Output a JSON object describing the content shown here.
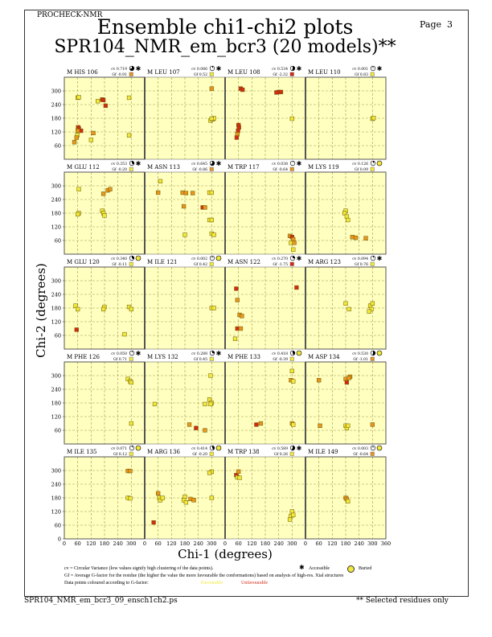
{
  "header": {
    "program": "PROCHECK-NMR",
    "page_label": "Page  3",
    "title_line1": "Ensemble chi1-chi2 plots",
    "title_line2": "SPR104_NMR_em_bcr3 (20 models)**"
  },
  "footer": {
    "filename": "SPR104_NMR_em_bcr3_09_ensch1ch2.ps",
    "note": "** Selected residues only"
  },
  "legend": {
    "cv_text": "cv = Circular Variance (low values signify high clustering of the data points).",
    "accessible": "Accessible",
    "buried": "Buried",
    "gf_text": "Gf = Average G-factor for the residue (the higher the value the more favourable the conformations) based on analysis of high-res. Xtal structures",
    "colour_text": "Data points coloured according to G-factor:",
    "favourable": "Favourable",
    "unfavourable": "Unfavourable"
  },
  "colors": {
    "favourable": "#f2e83a",
    "medium": "#e8961e",
    "unfavourable": "#d42a14",
    "plot_bg": "#ffffc0",
    "grid": "#a09a50"
  },
  "chart_data": {
    "type": "scatter",
    "xlabel": "Chi-1 (degrees)",
    "ylabel": "Chi-2 (degrees)",
    "xlim": [
      0,
      360
    ],
    "ylim": [
      0,
      360
    ],
    "xticks": [
      0,
      60,
      120,
      180,
      240,
      300,
      360
    ],
    "yticks": [
      0,
      60,
      120,
      180,
      240,
      300
    ],
    "grid": true,
    "panels": [
      {
        "name": "M HIS 106",
        "cv_label": "cv 0.719",
        "cv": 0.719,
        "gf_label": "Gf -0.91",
        "gf": -0.91,
        "access": "accessible",
        "points": [
          [
            60,
            270,
            "y"
          ],
          [
            65,
            272,
            "y"
          ],
          [
            150,
            255,
            "y"
          ],
          [
            170,
            262,
            "r"
          ],
          [
            175,
            260,
            "r"
          ],
          [
            185,
            235,
            "r"
          ],
          [
            290,
            270,
            "y"
          ],
          [
            62,
            140,
            "r"
          ],
          [
            65,
            135,
            "r"
          ],
          [
            75,
            125,
            "r"
          ],
          [
            60,
            125,
            "o"
          ],
          [
            58,
            105,
            "y"
          ],
          [
            55,
            95,
            "o"
          ],
          [
            45,
            75,
            "o"
          ],
          [
            120,
            85,
            "y"
          ],
          [
            130,
            115,
            "o"
          ],
          [
            290,
            105,
            "y"
          ]
        ]
      },
      {
        "name": "M LEU 107",
        "cv_label": "cv 0.086",
        "cv": 0.086,
        "gf_label": "Gf 0.52",
        "gf": 0.52,
        "access": "accessible",
        "points": [
          [
            300,
            310,
            "o"
          ],
          [
            295,
            170,
            "y"
          ],
          [
            305,
            175,
            "y"
          ],
          [
            310,
            180,
            "y"
          ],
          [
            300,
            178,
            "y"
          ]
        ]
      },
      {
        "name": "M LEU 108",
        "cv_label": "cv 0.534",
        "cv": 0.534,
        "gf_label": "Gf -2.32",
        "gf": -2.32,
        "access": "accessible",
        "points": [
          [
            70,
            310,
            "r"
          ],
          [
            78,
            305,
            "r"
          ],
          [
            240,
            295,
            "r"
          ],
          [
            250,
            295,
            "r"
          ],
          [
            230,
            293,
            "r"
          ],
          [
            300,
            178,
            "y"
          ],
          [
            60,
            150,
            "r"
          ],
          [
            62,
            140,
            "r"
          ],
          [
            58,
            125,
            "r"
          ],
          [
            55,
            110,
            "o"
          ],
          [
            52,
            95,
            "r"
          ]
        ]
      },
      {
        "name": "M LEU 110",
        "cv_label": "cv 0.001",
        "cv": 0.001,
        "gf_label": "Gf 0.83",
        "gf": 0.83,
        "access": "accessible",
        "points": [
          [
            300,
            178,
            "y"
          ],
          [
            305,
            181,
            "y"
          ]
        ]
      },
      {
        "name": "M GLU 112",
        "cv_label": "cv 0.353",
        "cv": 0.353,
        "gf_label": "Gf -0.20",
        "gf": -0.2,
        "access": "accessible",
        "points": [
          [
            65,
            285,
            "y"
          ],
          [
            175,
            265,
            "o"
          ],
          [
            195,
            280,
            "o"
          ],
          [
            205,
            285,
            "o"
          ],
          [
            65,
            180,
            "y"
          ],
          [
            60,
            175,
            "y"
          ],
          [
            170,
            190,
            "y"
          ],
          [
            175,
            180,
            "y"
          ],
          [
            180,
            170,
            "y"
          ]
        ]
      },
      {
        "name": "M ASN 113",
        "cv_label": "cv 0.645",
        "cv": 0.645,
        "gf_label": "Gf -0.86",
        "gf": -0.86,
        "access": "accessible",
        "points": [
          [
            70,
            320,
            "y"
          ],
          [
            60,
            270,
            "o"
          ],
          [
            170,
            270,
            "o"
          ],
          [
            185,
            268,
            "o"
          ],
          [
            215,
            268,
            "o"
          ],
          [
            290,
            270,
            "y"
          ],
          [
            300,
            270,
            "y"
          ],
          [
            175,
            210,
            "o"
          ],
          [
            260,
            205,
            "r"
          ],
          [
            270,
            205,
            "o"
          ],
          [
            290,
            150,
            "y"
          ],
          [
            300,
            150,
            "y"
          ],
          [
            180,
            85,
            "y"
          ],
          [
            300,
            90,
            "y"
          ],
          [
            310,
            85,
            "y"
          ]
        ]
      },
      {
        "name": "M TRP 117",
        "cv_label": "cv 0.038",
        "cv": 0.038,
        "gf_label": "Gf -0.64",
        "gf": -0.64,
        "access": "accessible",
        "points": [
          [
            290,
            80,
            "o"
          ],
          [
            300,
            75,
            "r"
          ],
          [
            305,
            65,
            "o"
          ],
          [
            295,
            50,
            "y"
          ],
          [
            310,
            50,
            "o"
          ],
          [
            305,
            20,
            "y"
          ]
        ]
      },
      {
        "name": "M LYS 119",
        "cv_label": "cv 0.126",
        "cv": 0.126,
        "gf_label": "Gf 0.09",
        "gf": 0.09,
        "access": "buried",
        "points": [
          [
            180,
            190,
            "y"
          ],
          [
            175,
            180,
            "y"
          ],
          [
            185,
            165,
            "y"
          ],
          [
            190,
            150,
            "y"
          ],
          [
            210,
            75,
            "o"
          ],
          [
            225,
            72,
            "o"
          ],
          [
            270,
            70,
            "o"
          ]
        ]
      },
      {
        "name": "M GLU 120",
        "cv_label": "cv 0.340",
        "cv": 0.34,
        "gf_label": "Gf -0.11",
        "gf": -0.11,
        "access": "buried",
        "points": [
          [
            50,
            190,
            "y"
          ],
          [
            60,
            175,
            "y"
          ],
          [
            180,
            185,
            "y"
          ],
          [
            175,
            175,
            "y"
          ],
          [
            290,
            185,
            "y"
          ],
          [
            300,
            175,
            "y"
          ],
          [
            270,
            65,
            "y"
          ],
          [
            55,
            85,
            "r"
          ]
        ]
      },
      {
        "name": "M ILE 121",
        "cv_label": "cv 0.002",
        "cv": 0.002,
        "gf_label": "Gf 0.42",
        "gf": 0.42,
        "access": "buried",
        "points": [
          [
            300,
            180,
            "y"
          ],
          [
            310,
            180,
            "y"
          ]
        ]
      },
      {
        "name": "M ASN 122",
        "cv_label": "cv 0.270",
        "cv": 0.27,
        "gf_label": "Gf -1.75",
        "gf": -1.75,
        "access": "accessible",
        "points": [
          [
            50,
            265,
            "r"
          ],
          [
            55,
            215,
            "o"
          ],
          [
            65,
            150,
            "o"
          ],
          [
            75,
            145,
            "o"
          ],
          [
            55,
            90,
            "r"
          ],
          [
            70,
            90,
            "o"
          ],
          [
            45,
            45,
            "y"
          ],
          [
            320,
            270,
            "r"
          ]
        ]
      },
      {
        "name": "M ARG 123",
        "cv_label": "cv 0.094",
        "cv": 0.094,
        "gf_label": "Gf 0.76",
        "gf": 0.76,
        "access": "accessible",
        "points": [
          [
            180,
            200,
            "y"
          ],
          [
            195,
            175,
            "y"
          ],
          [
            290,
            190,
            "y"
          ],
          [
            300,
            200,
            "y"
          ],
          [
            295,
            175,
            "y"
          ],
          [
            285,
            165,
            "y"
          ]
        ]
      },
      {
        "name": "M PHE 126",
        "cv_label": "cv 0.050",
        "cv": 0.05,
        "gf_label": "Gf 0.71",
        "gf": 0.71,
        "access": "accessible",
        "points": [
          [
            285,
            285,
            "y"
          ],
          [
            295,
            275,
            "y"
          ],
          [
            300,
            270,
            "y"
          ],
          [
            300,
            90,
            "y"
          ]
        ]
      },
      {
        "name": "M LYS 132",
        "cv_label": "cv 0.288",
        "cv": 0.288,
        "gf_label": "Gf 0.45",
        "gf": 0.45,
        "access": "accessible",
        "points": [
          [
            295,
            300,
            "y"
          ],
          [
            290,
            195,
            "y"
          ],
          [
            300,
            180,
            "y"
          ],
          [
            295,
            175,
            "y"
          ],
          [
            270,
            175,
            "y"
          ],
          [
            45,
            175,
            "y"
          ],
          [
            200,
            85,
            "o"
          ],
          [
            230,
            70,
            "r"
          ],
          [
            270,
            60,
            "o"
          ]
        ]
      },
      {
        "name": "M PHE 133",
        "cv_label": "cv 0.418",
        "cv": 0.418,
        "gf_label": "Gf -0.39",
        "gf": -0.39,
        "access": "buried",
        "points": [
          [
            300,
            320,
            "y"
          ],
          [
            295,
            280,
            "o"
          ],
          [
            305,
            275,
            "y"
          ],
          [
            300,
            90,
            "o"
          ],
          [
            305,
            85,
            "y"
          ],
          [
            140,
            85,
            "r"
          ],
          [
            160,
            90,
            "o"
          ]
        ]
      },
      {
        "name": "M ASP 134",
        "cv_label": "cv 0.530",
        "cv": 0.53,
        "gf_label": "Gf -1.01",
        "gf": -1.01,
        "access": "buried",
        "points": [
          [
            180,
            285,
            "o"
          ],
          [
            200,
            295,
            "o"
          ],
          [
            195,
            290,
            "o"
          ],
          [
            185,
            270,
            "r"
          ],
          [
            60,
            280,
            "o"
          ],
          [
            180,
            80,
            "y"
          ],
          [
            185,
            70,
            "y"
          ],
          [
            190,
            80,
            "y"
          ],
          [
            300,
            85,
            "o"
          ],
          [
            65,
            80,
            "o"
          ]
        ]
      },
      {
        "name": "M ILE 135",
        "cv_label": "cv 0.071",
        "cv": 0.071,
        "gf_label": "Gf 0.12",
        "gf": 0.12,
        "access": "buried",
        "points": [
          [
            285,
            298,
            "o"
          ],
          [
            295,
            298,
            "o"
          ],
          [
            285,
            180,
            "y"
          ],
          [
            295,
            178,
            "y"
          ]
        ]
      },
      {
        "name": "M ARG 136",
        "cv_label": "cv 0.414",
        "cv": 0.414,
        "gf_label": "Gf -0.20",
        "gf": -0.2,
        "access": "buried",
        "points": [
          [
            60,
            200,
            "o"
          ],
          [
            65,
            180,
            "y"
          ],
          [
            70,
            170,
            "y"
          ],
          [
            80,
            180,
            "y"
          ],
          [
            180,
            185,
            "y"
          ],
          [
            175,
            170,
            "y"
          ],
          [
            185,
            160,
            "y"
          ],
          [
            205,
            175,
            "o"
          ],
          [
            220,
            170,
            "o"
          ],
          [
            300,
            295,
            "y"
          ],
          [
            290,
            290,
            "y"
          ],
          [
            300,
            180,
            "y"
          ],
          [
            40,
            72,
            "r"
          ]
        ]
      },
      {
        "name": "M TRP 138",
        "cv_label": "cv 0.589",
        "cv": 0.589,
        "gf_label": "Gf 0.26",
        "gf": 0.26,
        "access": "accessible",
        "points": [
          [
            50,
            280,
            "r"
          ],
          [
            60,
            295,
            "o"
          ],
          [
            55,
            270,
            "y"
          ],
          [
            65,
            268,
            "y"
          ],
          [
            300,
            120,
            "y"
          ],
          [
            295,
            100,
            "y"
          ],
          [
            305,
            105,
            "y"
          ],
          [
            290,
            85,
            "y"
          ]
        ]
      },
      {
        "name": "M ILE 149",
        "cv_label": "cv 0.003",
        "cv": 0.003,
        "gf_label": "Gf -0.64",
        "gf": -0.64,
        "access": "buried",
        "points": [
          [
            180,
            180,
            "o"
          ],
          [
            185,
            175,
            "o"
          ],
          [
            190,
            165,
            "y"
          ]
        ]
      }
    ]
  }
}
